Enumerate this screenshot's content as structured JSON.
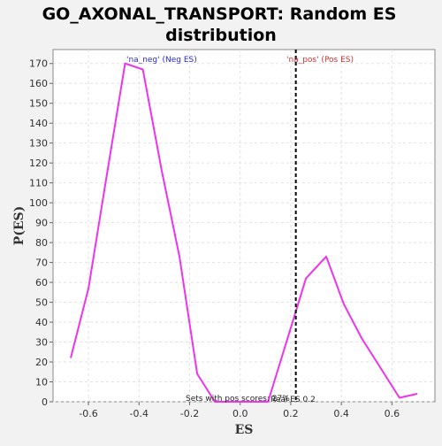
{
  "chart_data": {
    "type": "line",
    "title_line1": "GO_AXONAL_TRANSPORT: Random ES",
    "title_line2": "distribution",
    "xlabel": "ES",
    "ylabel": "P(ES)",
    "xlim": [
      -0.74,
      0.77
    ],
    "ylim": [
      0,
      177
    ],
    "x_ticks": [
      -0.6,
      -0.4,
      -0.2,
      0.0,
      0.2,
      0.4,
      0.6
    ],
    "x_tick_labels": [
      "-0.6",
      "-0.4",
      "-0.2",
      "0.0",
      "0.2",
      "0.4",
      "0.6"
    ],
    "y_ticks": [
      0,
      10,
      20,
      30,
      40,
      50,
      60,
      70,
      80,
      90,
      100,
      110,
      120,
      130,
      140,
      150,
      160,
      170
    ],
    "y_tick_labels": [
      "0",
      "10",
      "20",
      "30",
      "40",
      "50",
      "60",
      "70",
      "80",
      "90",
      "100",
      "110",
      "120",
      "130",
      "140",
      "150",
      "160",
      "170"
    ],
    "grid": true,
    "series": [
      {
        "color": "#ee33ee",
        "x": [
          -0.67,
          -0.6,
          -0.53,
          -0.455,
          -0.385,
          -0.31,
          -0.24,
          -0.17,
          -0.1,
          -0.03,
          0.04,
          0.11,
          0.19,
          0.26,
          0.34,
          0.41,
          0.48,
          0.56,
          0.63,
          0.7
        ],
        "y": [
          22,
          57,
          112,
          170,
          167,
          116,
          73,
          14,
          0,
          0,
          0,
          0,
          33,
          62,
          73,
          49,
          32,
          16,
          2,
          4
        ]
      }
    ],
    "vline": {
      "x": 0.22,
      "color": "#000000"
    },
    "annotations": {
      "neg_label": "'na_neg' (Neg ES)",
      "pos_label": "'na_pos' (Pos ES)",
      "bottom_label": "Sets with pos scores: 27%",
      "real_es_label": "Real ES 0.2"
    }
  }
}
